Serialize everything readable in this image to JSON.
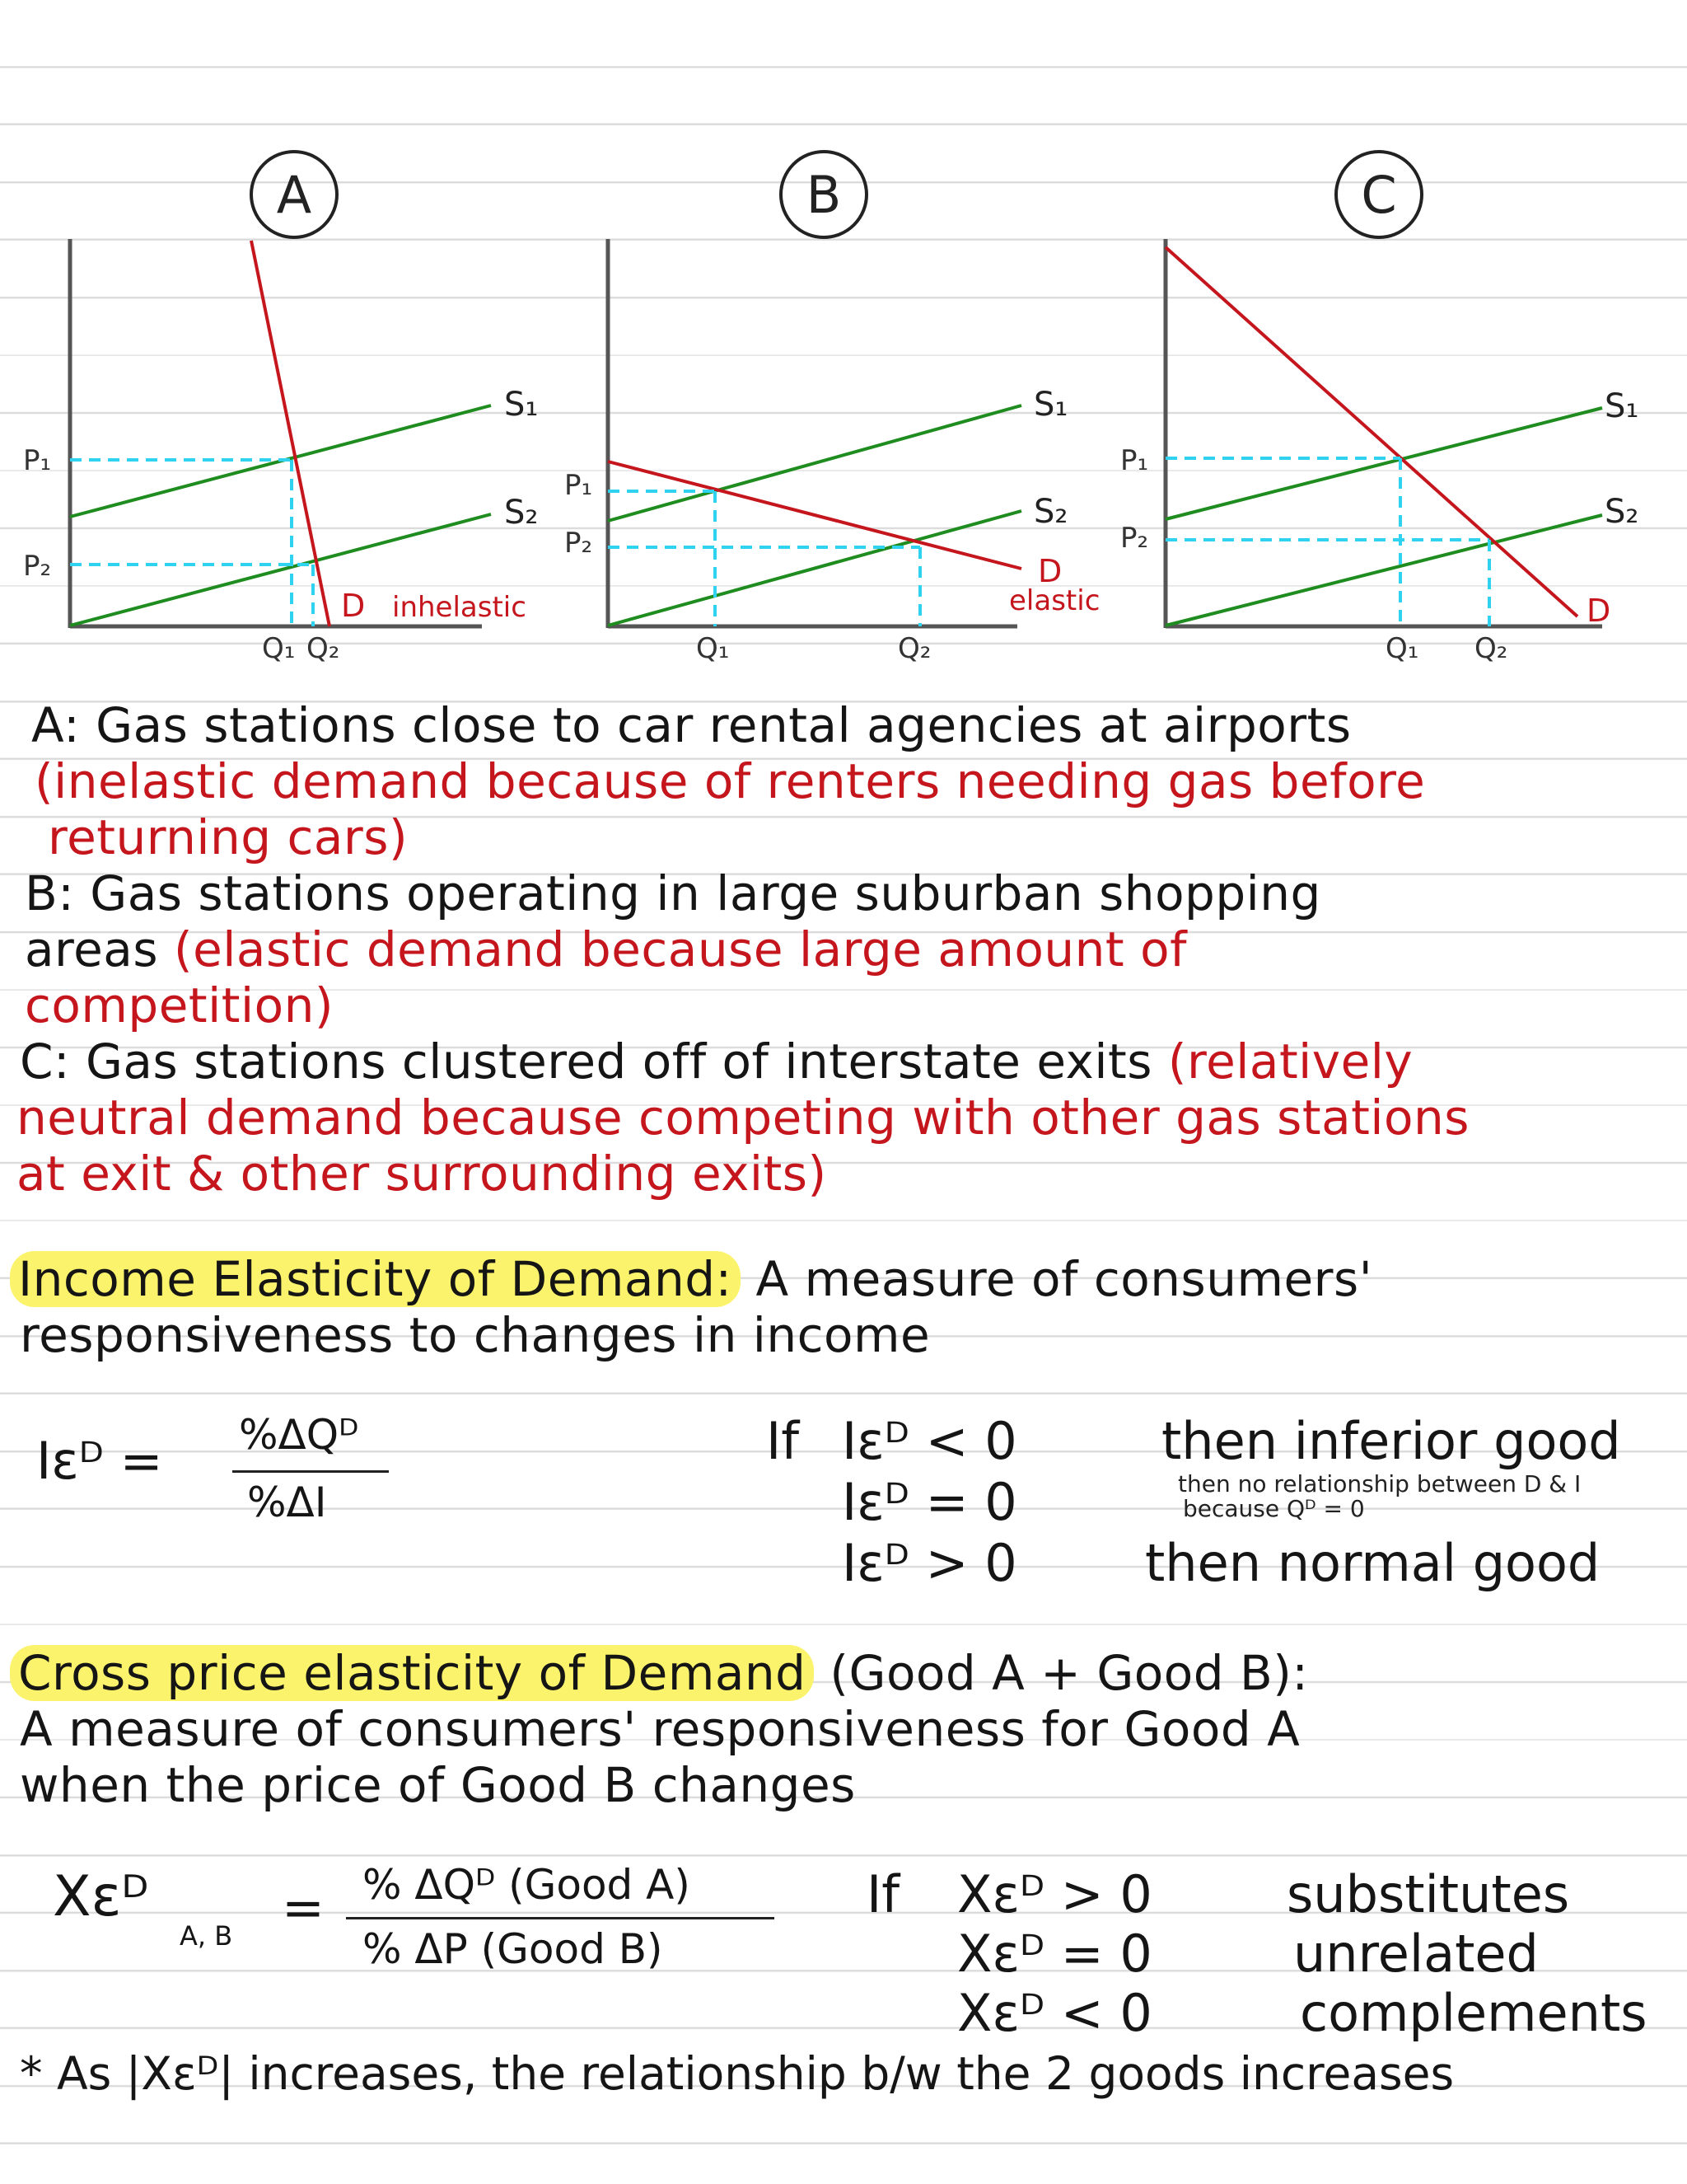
{
  "graphs": [
    {
      "id": "A",
      "badge": "A",
      "supply1": "S₁",
      "supply2": "S₂",
      "p1": "P₁",
      "p2": "P₂",
      "q1": "Q₁",
      "q2": "Q₂",
      "demand": "D",
      "demand_note": "inhelastic"
    },
    {
      "id": "B",
      "badge": "B",
      "supply1": "S₁",
      "supply2": "S₂",
      "p1": "P₁",
      "p2": "P₂",
      "q1": "Q₁",
      "q2": "Q₂",
      "demand": "D",
      "demand_note": "elastic"
    },
    {
      "id": "C",
      "badge": "C",
      "supply1": "S₁",
      "supply2": "S₂",
      "p1": "P₁",
      "p2": "P₂",
      "q1": "Q₁",
      "q2": "Q₂",
      "demand": "D",
      "demand_note": ""
    }
  ],
  "notes": {
    "a_line1": "A: Gas stations close to car rental agencies at airports",
    "a_line2": "(inelastic demand because of renters needing gas before",
    "a_line3": "returning cars)",
    "b_line1": "B: Gas stations operating in large suburban shopping",
    "b_line2_black": "areas",
    "b_line2_red": "(elastic demand because large amount of",
    "b_line3": "competition)",
    "c_line1_black": "C: Gas stations clustered off of interstate exits",
    "c_line1_red": "(relatively",
    "c_line2": "neutral demand because competing with other gas stations",
    "c_line3": "at exit & other surrounding exits)"
  },
  "income": {
    "term": "Income Elasticity of Demand:",
    "def1": "A measure of consumers'",
    "def2": "responsiveness to changes in income",
    "lhs": "Iεᴰ =",
    "numerator": "%ΔQᴰ",
    "denominator": "%ΔI",
    "if_word": "If",
    "cond1": "Iεᴰ < 0",
    "cond2": "Iεᴰ = 0",
    "cond3": "Iεᴰ > 0",
    "res1": "then inferior good",
    "res2a": "then no relationship between D & I",
    "res2b": "because Qᴰ = 0",
    "res3": "then normal good"
  },
  "cross": {
    "term": "Cross price elasticity of Demand",
    "term_tail": "(Good A + Good B):",
    "def1": "A measure of consumers' responsiveness for Good A",
    "def2": "when the price of Good B changes",
    "lhs": "Xεᴰ",
    "lhs_sub": "A, B",
    "numerator": "% ΔQᴰ (Good A)",
    "denominator": "% ΔP (Good B)",
    "if_word": "If",
    "cond1": "Xεᴰ > 0",
    "cond2": "Xεᴰ = 0",
    "cond3": "Xεᴰ < 0",
    "res1": "substitutes",
    "res2": "unrelated",
    "res3": "complements",
    "footnote": "* As |Xεᴰ| increases, the relationship b/w the 2 goods increases"
  }
}
